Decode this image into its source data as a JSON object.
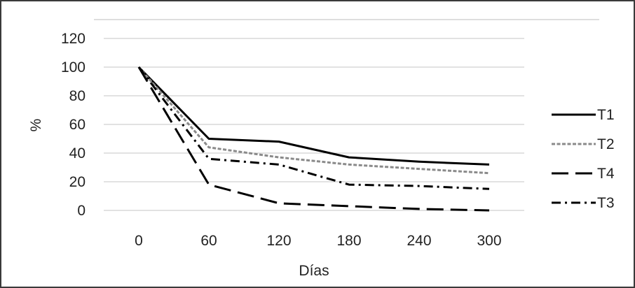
{
  "chart_data": {
    "type": "line",
    "title": "",
    "xlabel": "Días",
    "ylabel": "%",
    "x": [
      0,
      60,
      120,
      180,
      240,
      300
    ],
    "ylim": [
      0,
      120
    ],
    "yticks": [
      0,
      20,
      40,
      60,
      80,
      100,
      120
    ],
    "grid": true,
    "legend_position": "right",
    "series": [
      {
        "name": "T1",
        "values": [
          100,
          50,
          48,
          37,
          34,
          32
        ],
        "dash": "solid",
        "color": "#000000"
      },
      {
        "name": "T2",
        "values": [
          100,
          44,
          37,
          32,
          29,
          26
        ],
        "dash": "dotted",
        "color": "#8a8a8a"
      },
      {
        "name": "T4",
        "values": [
          100,
          18,
          5,
          3,
          1,
          0
        ],
        "dash": "long-dash",
        "color": "#000000"
      },
      {
        "name": "T3",
        "values": [
          100,
          36,
          32,
          18,
          17,
          15
        ],
        "dash": "dash-dot",
        "color": "#000000"
      }
    ]
  }
}
